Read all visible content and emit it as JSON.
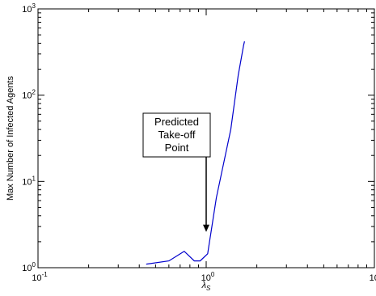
{
  "chart_data": {
    "type": "line",
    "title": "",
    "xlabel_base": "λ",
    "xlabel_sub": "S",
    "ylabel": "Max Number of Infected Agents",
    "xscale": "log",
    "yscale": "log",
    "xlim": [
      0.1,
      10
    ],
    "ylim": [
      1,
      1000
    ],
    "grid": false,
    "x_ticks": [
      {
        "base": "10",
        "exp": "-1"
      },
      {
        "base": "10",
        "exp": "0"
      },
      {
        "base": "10",
        "exp": "1"
      }
    ],
    "y_ticks": [
      {
        "base": "10",
        "exp": "0"
      },
      {
        "base": "10",
        "exp": "1"
      },
      {
        "base": "10",
        "exp": "2"
      },
      {
        "base": "10",
        "exp": "3"
      }
    ],
    "series": [
      {
        "color": "#0000cc",
        "x": [
          0.44,
          0.6,
          0.74,
          0.85,
          0.92,
          1.02,
          1.15,
          1.4,
          1.55,
          1.67,
          1.69
        ],
        "y": [
          1.1,
          1.2,
          1.55,
          1.2,
          1.2,
          1.45,
          6.5,
          40,
          170,
          380,
          420
        ]
      }
    ],
    "annotation": {
      "lines": [
        "Predicted",
        "Take-off",
        "Point"
      ],
      "target": {
        "x": 1.0,
        "y": 2.6
      }
    }
  }
}
